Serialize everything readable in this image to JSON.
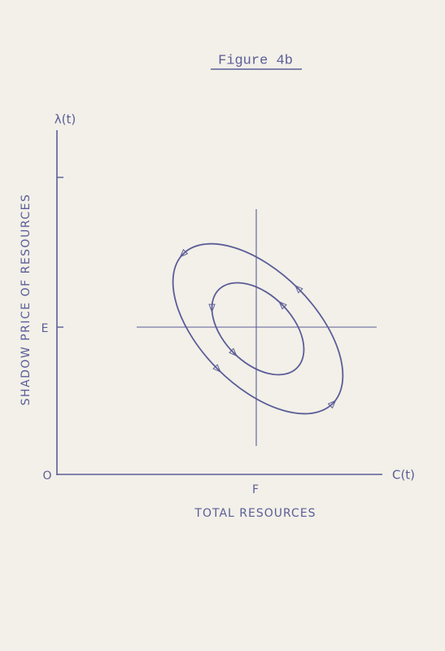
{
  "title": "Figure 4b",
  "y_axis": {
    "symbol": "λ(t)",
    "label": "SHADOW PRICE OF RESOURCES",
    "equilibrium": "E",
    "origin": "O"
  },
  "x_axis": {
    "symbol": "C(t)",
    "label": "TOTAL RESOURCES",
    "equilibrium": "F"
  }
}
